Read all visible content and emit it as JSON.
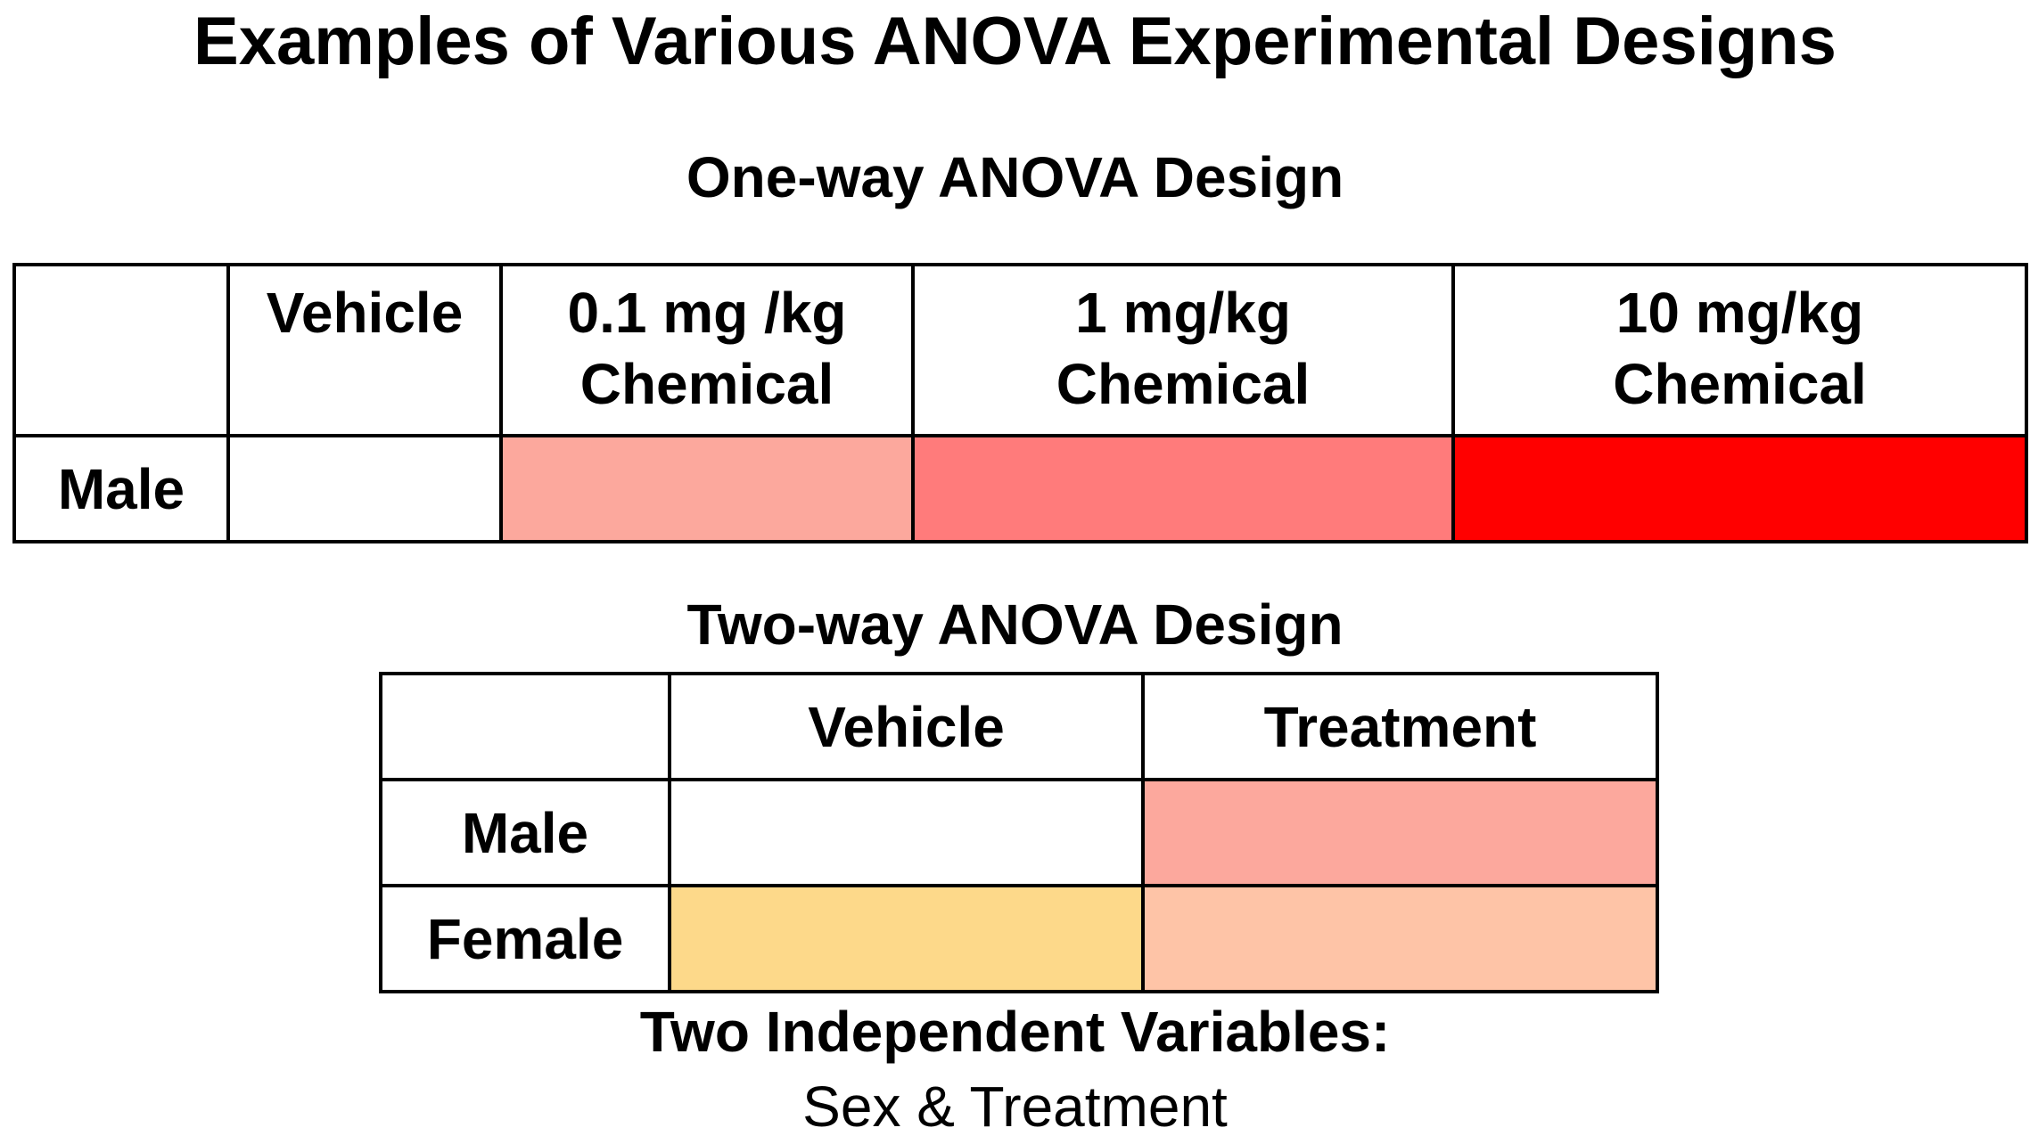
{
  "title": "Examples of Various ANOVA Experimental Designs",
  "one_way": {
    "heading": "One-way ANOVA Design",
    "columns": [
      "",
      "Vehicle",
      "0.1 mg /kg\nChemical",
      "1 mg/kg\nChemical",
      "10 mg/kg\nChemical"
    ],
    "rows": [
      {
        "label": "Male",
        "cell_colors": [
          "#ffffff",
          "#fca89d",
          "#ff7b7b",
          "#ff0000"
        ]
      }
    ]
  },
  "two_way": {
    "heading": "Two-way ANOVA Design",
    "columns": [
      "",
      "Vehicle",
      "Treatment"
    ],
    "rows": [
      {
        "label": "Male",
        "cell_colors": [
          "#ffffff",
          "#fca89d"
        ]
      },
      {
        "label": "Female",
        "cell_colors": [
          "#fdd98a",
          "#fec4a7"
        ]
      }
    ]
  },
  "footer": {
    "main": "Two Independent Variables:",
    "sub": "Sex & Treatment"
  }
}
